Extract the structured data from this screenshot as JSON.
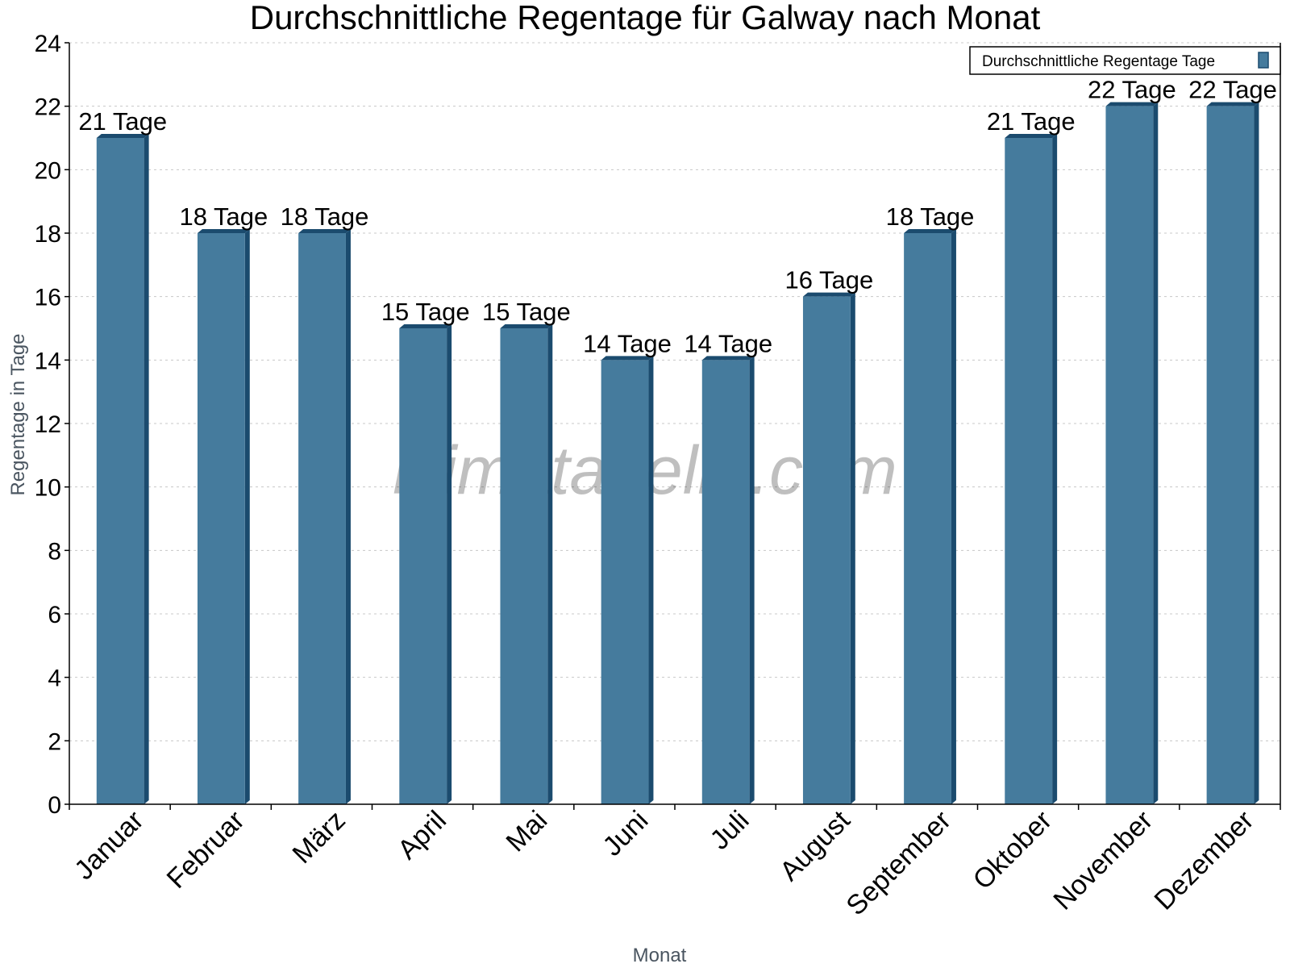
{
  "chart_data": {
    "type": "bar",
    "title": "Durchschnittliche Regentage für Galway nach Monat",
    "xlabel": "Monat",
    "ylabel": "Regentage in Tage",
    "categories": [
      "Januar",
      "Februar",
      "März",
      "April",
      "Mai",
      "Juni",
      "Juli",
      "August",
      "September",
      "Oktober",
      "November",
      "Dezember"
    ],
    "series": [
      {
        "name": "Durchschnittliche Regentage Tage",
        "values": [
          21,
          18,
          18,
          15,
          15,
          14,
          14,
          16,
          18,
          21,
          22,
          22
        ]
      }
    ],
    "data_labels": [
      "21 Tage",
      "18 Tage",
      "18 Tage",
      "15 Tage",
      "15 Tage",
      "14 Tage",
      "14 Tage",
      "16 Tage",
      "18 Tage",
      "21 Tage",
      "22 Tage",
      "22 Tage"
    ],
    "ylim": [
      0,
      24
    ],
    "yticks": [
      0,
      2,
      4,
      6,
      8,
      10,
      12,
      14,
      16,
      18,
      20,
      22,
      24
    ],
    "grid": true,
    "legend_position": "top-right",
    "watermark": "klimatabelle.com",
    "colors": {
      "bar": "#457b9d",
      "bar_side": "#1b4b6e",
      "grid": "#c8c8c8"
    }
  }
}
